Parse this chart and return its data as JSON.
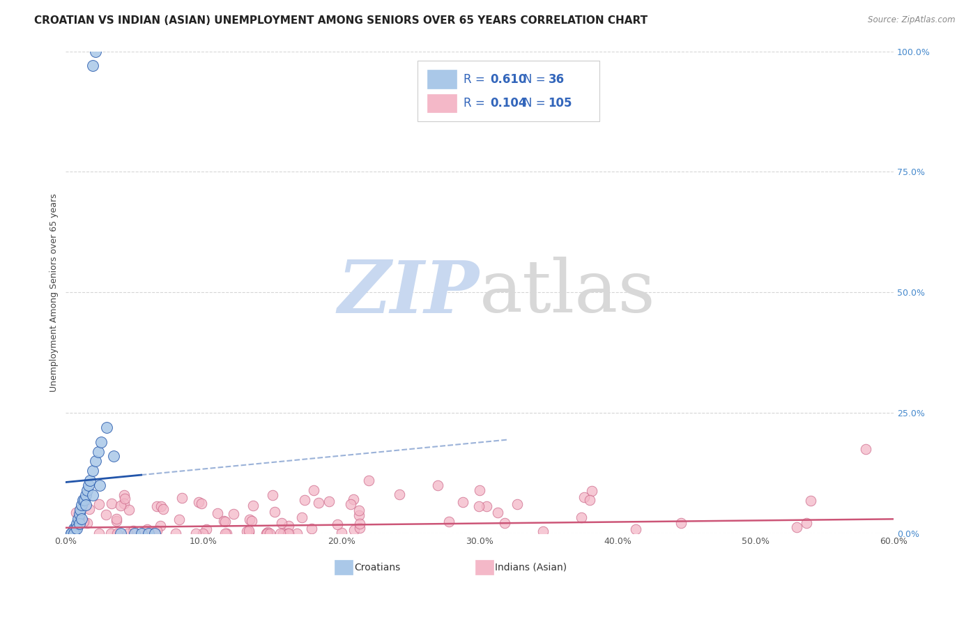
{
  "title": "CROATIAN VS INDIAN (ASIAN) UNEMPLOYMENT AMONG SENIORS OVER 65 YEARS CORRELATION CHART",
  "source": "Source: ZipAtlas.com",
  "ylabel": "Unemployment Among Seniors over 65 years",
  "xlabel_croatians": "Croatians",
  "xlabel_indians": "Indians (Asian)",
  "xlim": [
    0.0,
    0.6
  ],
  "ylim": [
    0.0,
    1.0
  ],
  "xticks": [
    0.0,
    0.1,
    0.2,
    0.3,
    0.4,
    0.5,
    0.6
  ],
  "xticklabels": [
    "0.0%",
    "10.0%",
    "20.0%",
    "30.0%",
    "40.0%",
    "50.0%",
    "60.0%"
  ],
  "yticks": [
    0.0,
    0.25,
    0.5,
    0.75,
    1.0
  ],
  "yticklabels_right": [
    "0.0%",
    "25.0%",
    "50.0%",
    "75.0%",
    "100.0%"
  ],
  "legend_R_croatian": "0.610",
  "legend_N_croatian": "36",
  "legend_R_indian": "0.104",
  "legend_N_indian": "105",
  "croatian_color": "#aac8e8",
  "croatian_line_color": "#2255aa",
  "indian_color": "#f4b8c8",
  "indian_line_color": "#cc5577",
  "watermark_color_zip": "#c8d8f0",
  "watermark_color_atlas": "#d8d8d8",
  "grid_color": "#cccccc",
  "background_color": "#ffffff",
  "title_fontsize": 11,
  "axis_label_fontsize": 9,
  "tick_fontsize": 9,
  "legend_fontsize": 12,
  "right_tick_color": "#4488cc"
}
